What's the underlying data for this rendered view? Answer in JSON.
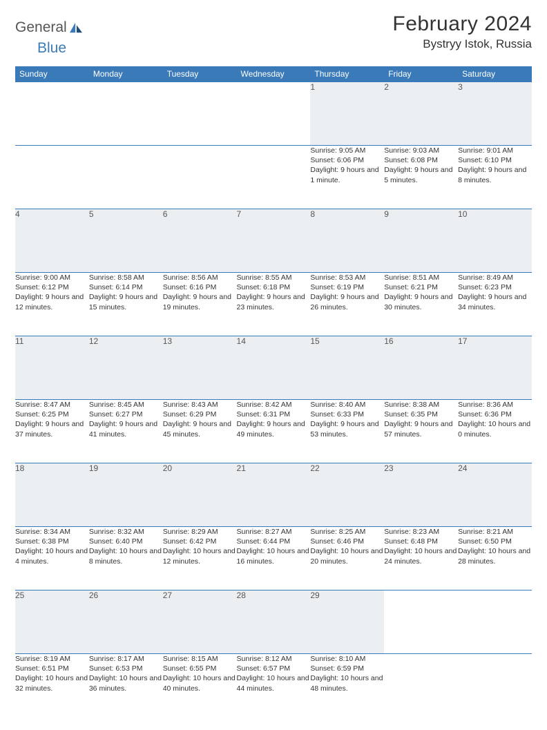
{
  "brand": {
    "general": "General",
    "blue": "Blue"
  },
  "title": "February 2024",
  "location": "Bystryy Istok, Russia",
  "colors": {
    "header_bg": "#3a7ab8",
    "header_text": "#ffffff",
    "daynum_bg": "#eceff1",
    "rule": "#3a7ab8",
    "body_text": "#333333"
  },
  "day_headers": [
    "Sunday",
    "Monday",
    "Tuesday",
    "Wednesday",
    "Thursday",
    "Friday",
    "Saturday"
  ],
  "weeks": [
    [
      null,
      null,
      null,
      null,
      {
        "n": "1",
        "sr": "9:05 AM",
        "ss": "6:06 PM",
        "dl": "9 hours and 1 minute."
      },
      {
        "n": "2",
        "sr": "9:03 AM",
        "ss": "6:08 PM",
        "dl": "9 hours and 5 minutes."
      },
      {
        "n": "3",
        "sr": "9:01 AM",
        "ss": "6:10 PM",
        "dl": "9 hours and 8 minutes."
      }
    ],
    [
      {
        "n": "4",
        "sr": "9:00 AM",
        "ss": "6:12 PM",
        "dl": "9 hours and 12 minutes."
      },
      {
        "n": "5",
        "sr": "8:58 AM",
        "ss": "6:14 PM",
        "dl": "9 hours and 15 minutes."
      },
      {
        "n": "6",
        "sr": "8:56 AM",
        "ss": "6:16 PM",
        "dl": "9 hours and 19 minutes."
      },
      {
        "n": "7",
        "sr": "8:55 AM",
        "ss": "6:18 PM",
        "dl": "9 hours and 23 minutes."
      },
      {
        "n": "8",
        "sr": "8:53 AM",
        "ss": "6:19 PM",
        "dl": "9 hours and 26 minutes."
      },
      {
        "n": "9",
        "sr": "8:51 AM",
        "ss": "6:21 PM",
        "dl": "9 hours and 30 minutes."
      },
      {
        "n": "10",
        "sr": "8:49 AM",
        "ss": "6:23 PM",
        "dl": "9 hours and 34 minutes."
      }
    ],
    [
      {
        "n": "11",
        "sr": "8:47 AM",
        "ss": "6:25 PM",
        "dl": "9 hours and 37 minutes."
      },
      {
        "n": "12",
        "sr": "8:45 AM",
        "ss": "6:27 PM",
        "dl": "9 hours and 41 minutes."
      },
      {
        "n": "13",
        "sr": "8:43 AM",
        "ss": "6:29 PM",
        "dl": "9 hours and 45 minutes."
      },
      {
        "n": "14",
        "sr": "8:42 AM",
        "ss": "6:31 PM",
        "dl": "9 hours and 49 minutes."
      },
      {
        "n": "15",
        "sr": "8:40 AM",
        "ss": "6:33 PM",
        "dl": "9 hours and 53 minutes."
      },
      {
        "n": "16",
        "sr": "8:38 AM",
        "ss": "6:35 PM",
        "dl": "9 hours and 57 minutes."
      },
      {
        "n": "17",
        "sr": "8:36 AM",
        "ss": "6:36 PM",
        "dl": "10 hours and 0 minutes."
      }
    ],
    [
      {
        "n": "18",
        "sr": "8:34 AM",
        "ss": "6:38 PM",
        "dl": "10 hours and 4 minutes."
      },
      {
        "n": "19",
        "sr": "8:32 AM",
        "ss": "6:40 PM",
        "dl": "10 hours and 8 minutes."
      },
      {
        "n": "20",
        "sr": "8:29 AM",
        "ss": "6:42 PM",
        "dl": "10 hours and 12 minutes."
      },
      {
        "n": "21",
        "sr": "8:27 AM",
        "ss": "6:44 PM",
        "dl": "10 hours and 16 minutes."
      },
      {
        "n": "22",
        "sr": "8:25 AM",
        "ss": "6:46 PM",
        "dl": "10 hours and 20 minutes."
      },
      {
        "n": "23",
        "sr": "8:23 AM",
        "ss": "6:48 PM",
        "dl": "10 hours and 24 minutes."
      },
      {
        "n": "24",
        "sr": "8:21 AM",
        "ss": "6:50 PM",
        "dl": "10 hours and 28 minutes."
      }
    ],
    [
      {
        "n": "25",
        "sr": "8:19 AM",
        "ss": "6:51 PM",
        "dl": "10 hours and 32 minutes."
      },
      {
        "n": "26",
        "sr": "8:17 AM",
        "ss": "6:53 PM",
        "dl": "10 hours and 36 minutes."
      },
      {
        "n": "27",
        "sr": "8:15 AM",
        "ss": "6:55 PM",
        "dl": "10 hours and 40 minutes."
      },
      {
        "n": "28",
        "sr": "8:12 AM",
        "ss": "6:57 PM",
        "dl": "10 hours and 44 minutes."
      },
      {
        "n": "29",
        "sr": "8:10 AM",
        "ss": "6:59 PM",
        "dl": "10 hours and 48 minutes."
      },
      null,
      null
    ]
  ],
  "labels": {
    "sunrise": "Sunrise:",
    "sunset": "Sunset:",
    "daylight": "Daylight:"
  }
}
